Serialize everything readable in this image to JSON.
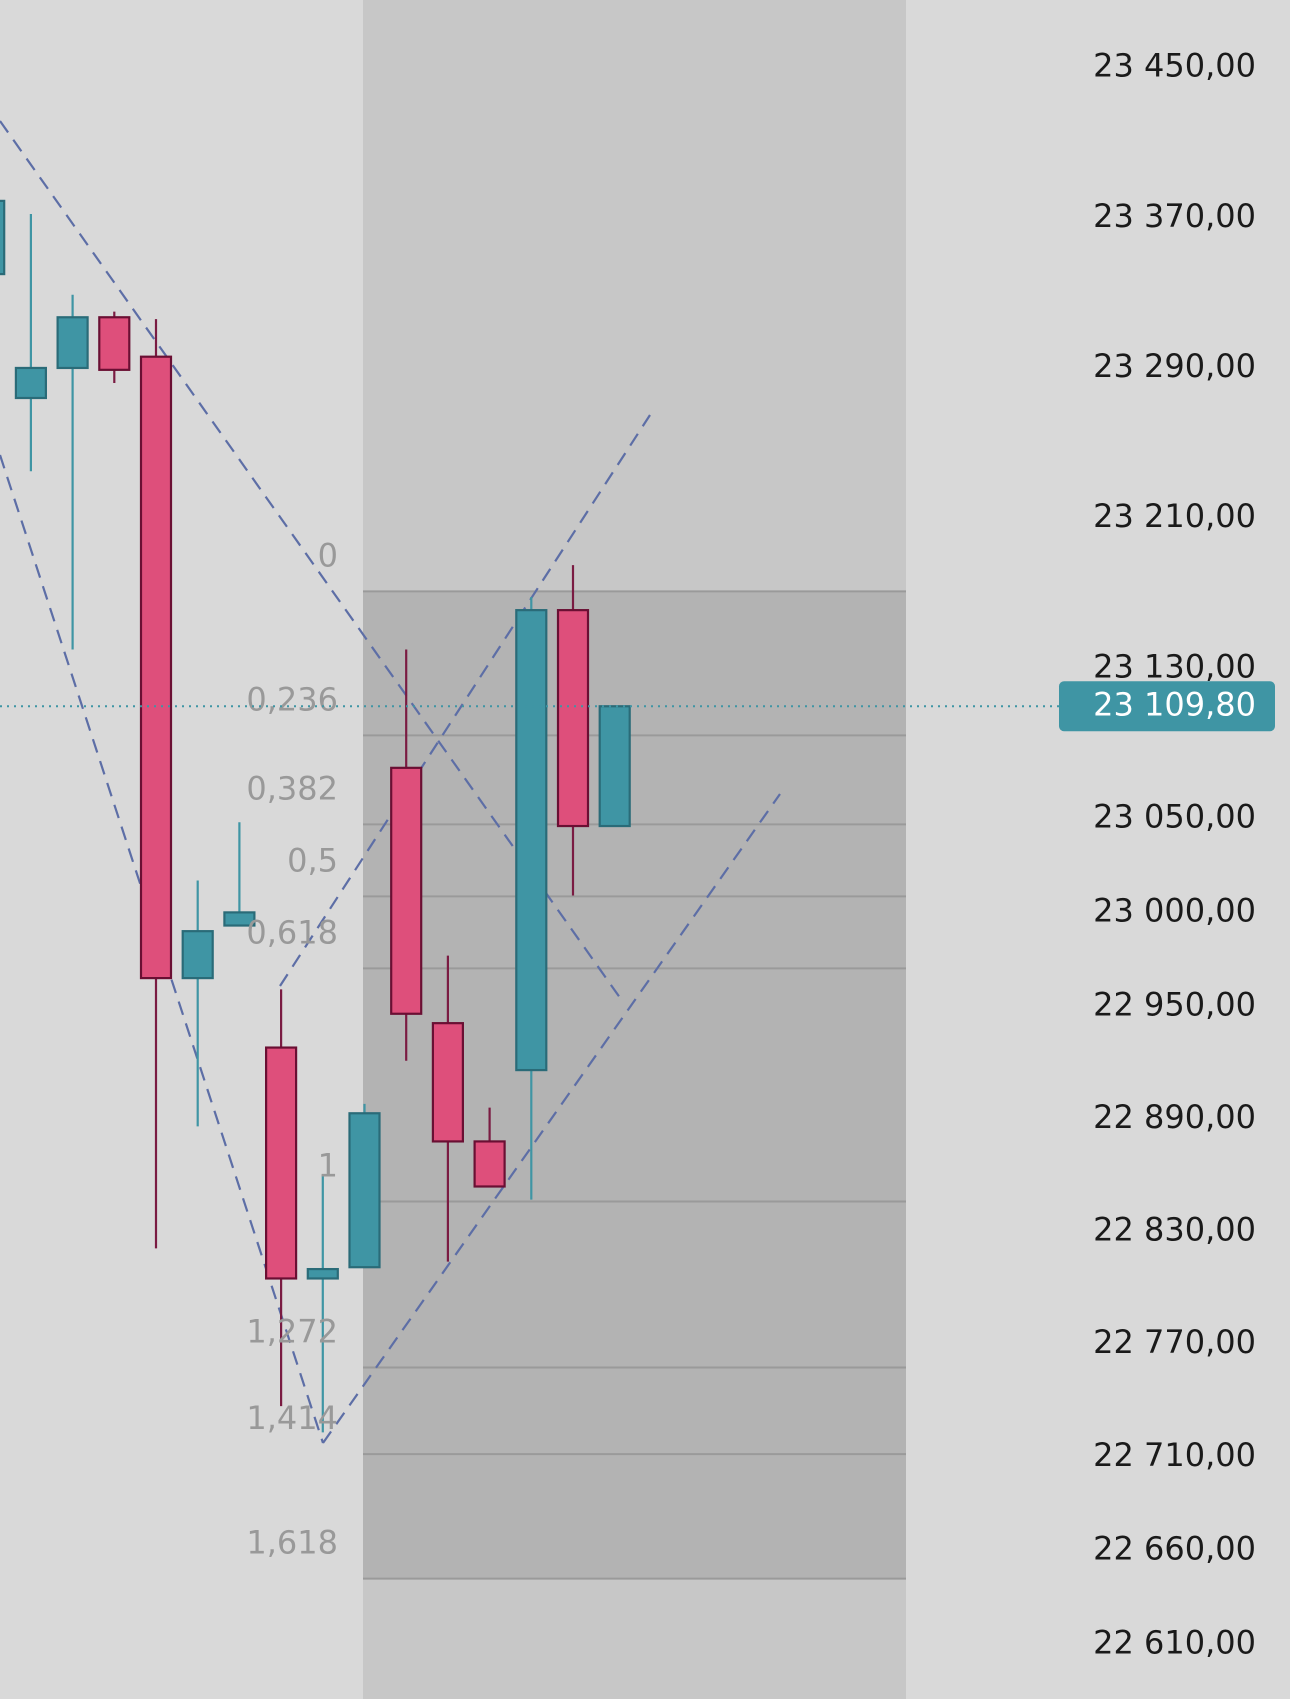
{
  "chart_data": {
    "type": "candlestick",
    "open": [
      23340,
      23274,
      23290,
      23317,
      23296,
      22965,
      22993,
      22928,
      22805,
      22811,
      23077,
      22941,
      22878,
      22916,
      23161,
      23046
    ],
    "high": [
      23379,
      23372,
      23329,
      23320,
      23316,
      23017,
      23048,
      22959,
      22860,
      22898,
      23140,
      22977,
      22896,
      23168,
      23185,
      23109.8
    ],
    "low": [
      23340,
      23235,
      23140,
      23282,
      22821,
      22886,
      22993,
      22737,
      22723,
      22811,
      22921,
      22814,
      22854,
      22847,
      23009,
      23046
    ],
    "close": [
      23379,
      23290,
      23317,
      23289,
      22965,
      22990,
      23000,
      22805,
      22810,
      22893,
      22946,
      22878,
      22854,
      23161,
      23046,
      23109.8
    ],
    "up_color": "#3f95a4",
    "down_color": "#de4f7b",
    "ylim": [
      22581,
      23486
    ],
    "yticks": [
      {
        "value": 23450,
        "label": "23 450,00"
      },
      {
        "value": 23370,
        "label": "23 370,00"
      },
      {
        "value": 23290,
        "label": "23 290,00"
      },
      {
        "value": 23210,
        "label": "23 210,00"
      },
      {
        "value": 23130,
        "label": "23 130,00"
      },
      {
        "value": 23050,
        "label": "23 050,00"
      },
      {
        "value": 23000,
        "label": "23 000,00"
      },
      {
        "value": 22950,
        "label": "22 950,00"
      },
      {
        "value": 22890,
        "label": "22 890,00"
      },
      {
        "value": 22830,
        "label": "22 830,00"
      },
      {
        "value": 22770,
        "label": "22 770,00"
      },
      {
        "value": 22710,
        "label": "22 710,00"
      },
      {
        "value": 22660,
        "label": "22 660,00"
      },
      {
        "value": 22610,
        "label": "22 610,00"
      }
    ],
    "current_price": {
      "value": 23109.8,
      "label": "23 109,80"
    },
    "fib": {
      "start": 23171,
      "end": 22846,
      "levels": [
        0,
        {
          "value": 0.236,
          "label": "0,236"
        },
        {
          "value": 0.382,
          "label": "0,382"
        },
        {
          "value": 0.5,
          "label": "0,5"
        },
        {
          "value": 0.618,
          "label": "0,618"
        },
        1,
        {
          "value": 1.272,
          "label": "1,272"
        },
        {
          "value": 1.414,
          "label": "1,414"
        },
        {
          "value": 1.618,
          "label": "1,618"
        }
      ]
    }
  }
}
